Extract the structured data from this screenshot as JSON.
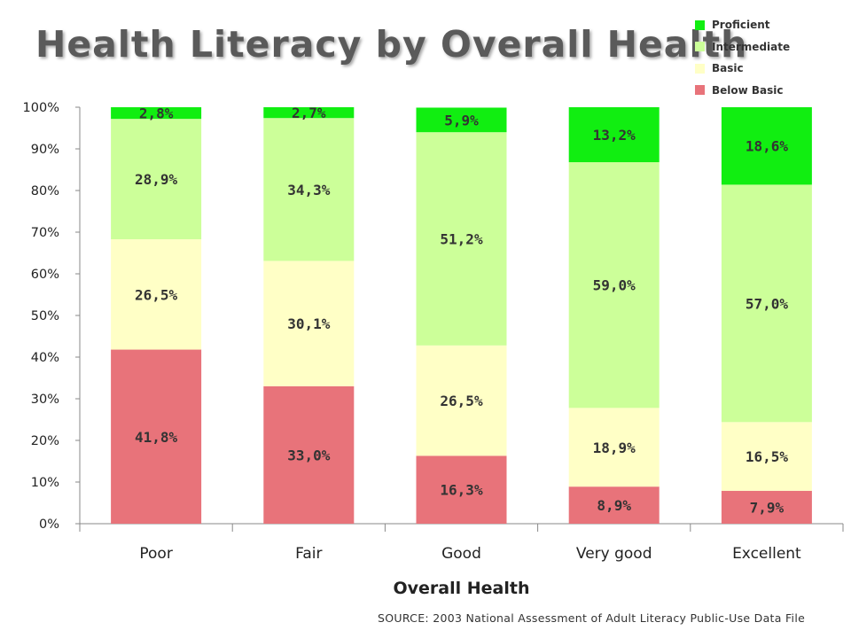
{
  "chart_data": {
    "type": "bar",
    "stacked": true,
    "title": "Health Literacy by Overall Health",
    "xlabel": "Overall Health",
    "ylabel": "",
    "ylim": [
      0,
      100
    ],
    "yticks": [
      "0%",
      "10%",
      "20%",
      "30%",
      "40%",
      "50%",
      "60%",
      "70%",
      "80%",
      "90%",
      "100%"
    ],
    "categories": [
      "Poor",
      "Fair",
      "Good",
      "Very good",
      "Excellent"
    ],
    "series": [
      {
        "name": "Below Basic",
        "color": "#e8737a",
        "values": [
          41.8,
          33.0,
          16.3,
          8.9,
          7.9
        ],
        "labels": [
          "41,8%",
          "33,0%",
          "16,3%",
          "8,9%",
          "7,9%"
        ]
      },
      {
        "name": "Basic",
        "color": "#ffffc6",
        "values": [
          26.5,
          30.1,
          26.5,
          18.9,
          16.5
        ],
        "labels": [
          "26,5%",
          "30,1%",
          "26,5%",
          "18,9%",
          "16,5%"
        ]
      },
      {
        "name": "Intermediate",
        "color": "#ccff99",
        "values": [
          28.9,
          34.3,
          51.2,
          59.0,
          57.0
        ],
        "labels": [
          "28,9%",
          "34,3%",
          "51,2%",
          "59,0%",
          "57,0%"
        ]
      },
      {
        "name": "Proficient",
        "color": "#11ee11",
        "values": [
          2.8,
          2.7,
          5.9,
          13.2,
          18.6
        ],
        "labels": [
          "2,8%",
          "2,7%",
          "5,9%",
          "13,2%",
          "18,6%"
        ]
      }
    ],
    "legend_position": "top-right",
    "grid": false
  },
  "legend": [
    {
      "label": "Proficient",
      "color": "#11ee11"
    },
    {
      "label": "Intermediate",
      "color": "#ccff99"
    },
    {
      "label": "Basic",
      "color": "#ffffc6"
    },
    {
      "label": "Below Basic",
      "color": "#e8737a"
    }
  ],
  "source": "SOURCE: 2003 National Assessment of Adult Literacy Public-Use Data File"
}
